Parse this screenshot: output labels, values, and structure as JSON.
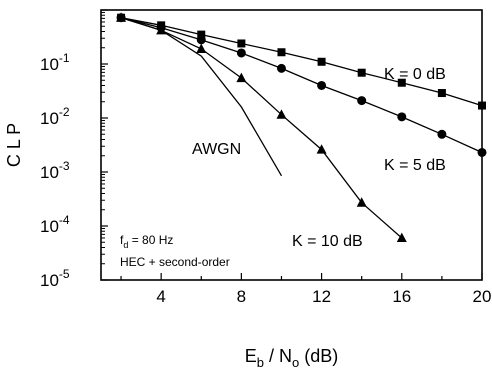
{
  "chart_data": {
    "type": "line",
    "title": "",
    "xlabel": {
      "main": "E",
      "sub1": "b",
      "mid": " / N",
      "sub2": "o",
      "unit": " (dB)"
    },
    "ylabel": "C L P",
    "xlim": [
      1,
      20
    ],
    "ylim_log10": [
      -5,
      0
    ],
    "y_scale": "log",
    "grid": false,
    "x_ticks": [
      "4",
      "8",
      "12",
      "16",
      "20"
    ],
    "x_tick_values": [
      4,
      8,
      12,
      16,
      20
    ],
    "y_ticks": [
      {
        "base": "10",
        "exp": "-1",
        "value": 0.1
      },
      {
        "base": "10",
        "exp": "-2",
        "value": 0.01
      },
      {
        "base": "10",
        "exp": "-3",
        "value": 0.001
      },
      {
        "base": "10",
        "exp": "-4",
        "value": 0.0001
      },
      {
        "base": "10",
        "exp": "-5",
        "value": 1e-05
      }
    ],
    "series": [
      {
        "name": "K = 0 dB",
        "marker": "square",
        "x": [
          2,
          4,
          6,
          8,
          10,
          12,
          14,
          16,
          18,
          20
        ],
        "y": [
          0.72,
          0.52,
          0.35,
          0.24,
          0.165,
          0.11,
          0.069,
          0.045,
          0.029,
          0.017
        ]
      },
      {
        "name": "K = 5 dB",
        "marker": "circle",
        "x": [
          2,
          4,
          6,
          8,
          10,
          12,
          14,
          16,
          18,
          20
        ],
        "y": [
          0.72,
          0.47,
          0.28,
          0.16,
          0.083,
          0.04,
          0.021,
          0.0105,
          0.005,
          0.0023
        ]
      },
      {
        "name": "K = 10 dB",
        "marker": "triangle",
        "x": [
          2,
          4,
          6,
          8,
          10,
          12,
          14,
          16
        ],
        "y": [
          0.72,
          0.42,
          0.19,
          0.055,
          0.0115,
          0.0026,
          0.00027,
          6e-05
        ]
      },
      {
        "name": "AWGN",
        "marker": "none",
        "x": [
          2,
          4,
          6,
          8,
          10
        ],
        "y": [
          0.72,
          0.42,
          0.14,
          0.016,
          0.00085
        ]
      }
    ],
    "annotations": {
      "fd_main": "f",
      "fd_sub": "d",
      "fd_rest": " = 80 Hz",
      "scheme": "HEC + second-order"
    }
  }
}
